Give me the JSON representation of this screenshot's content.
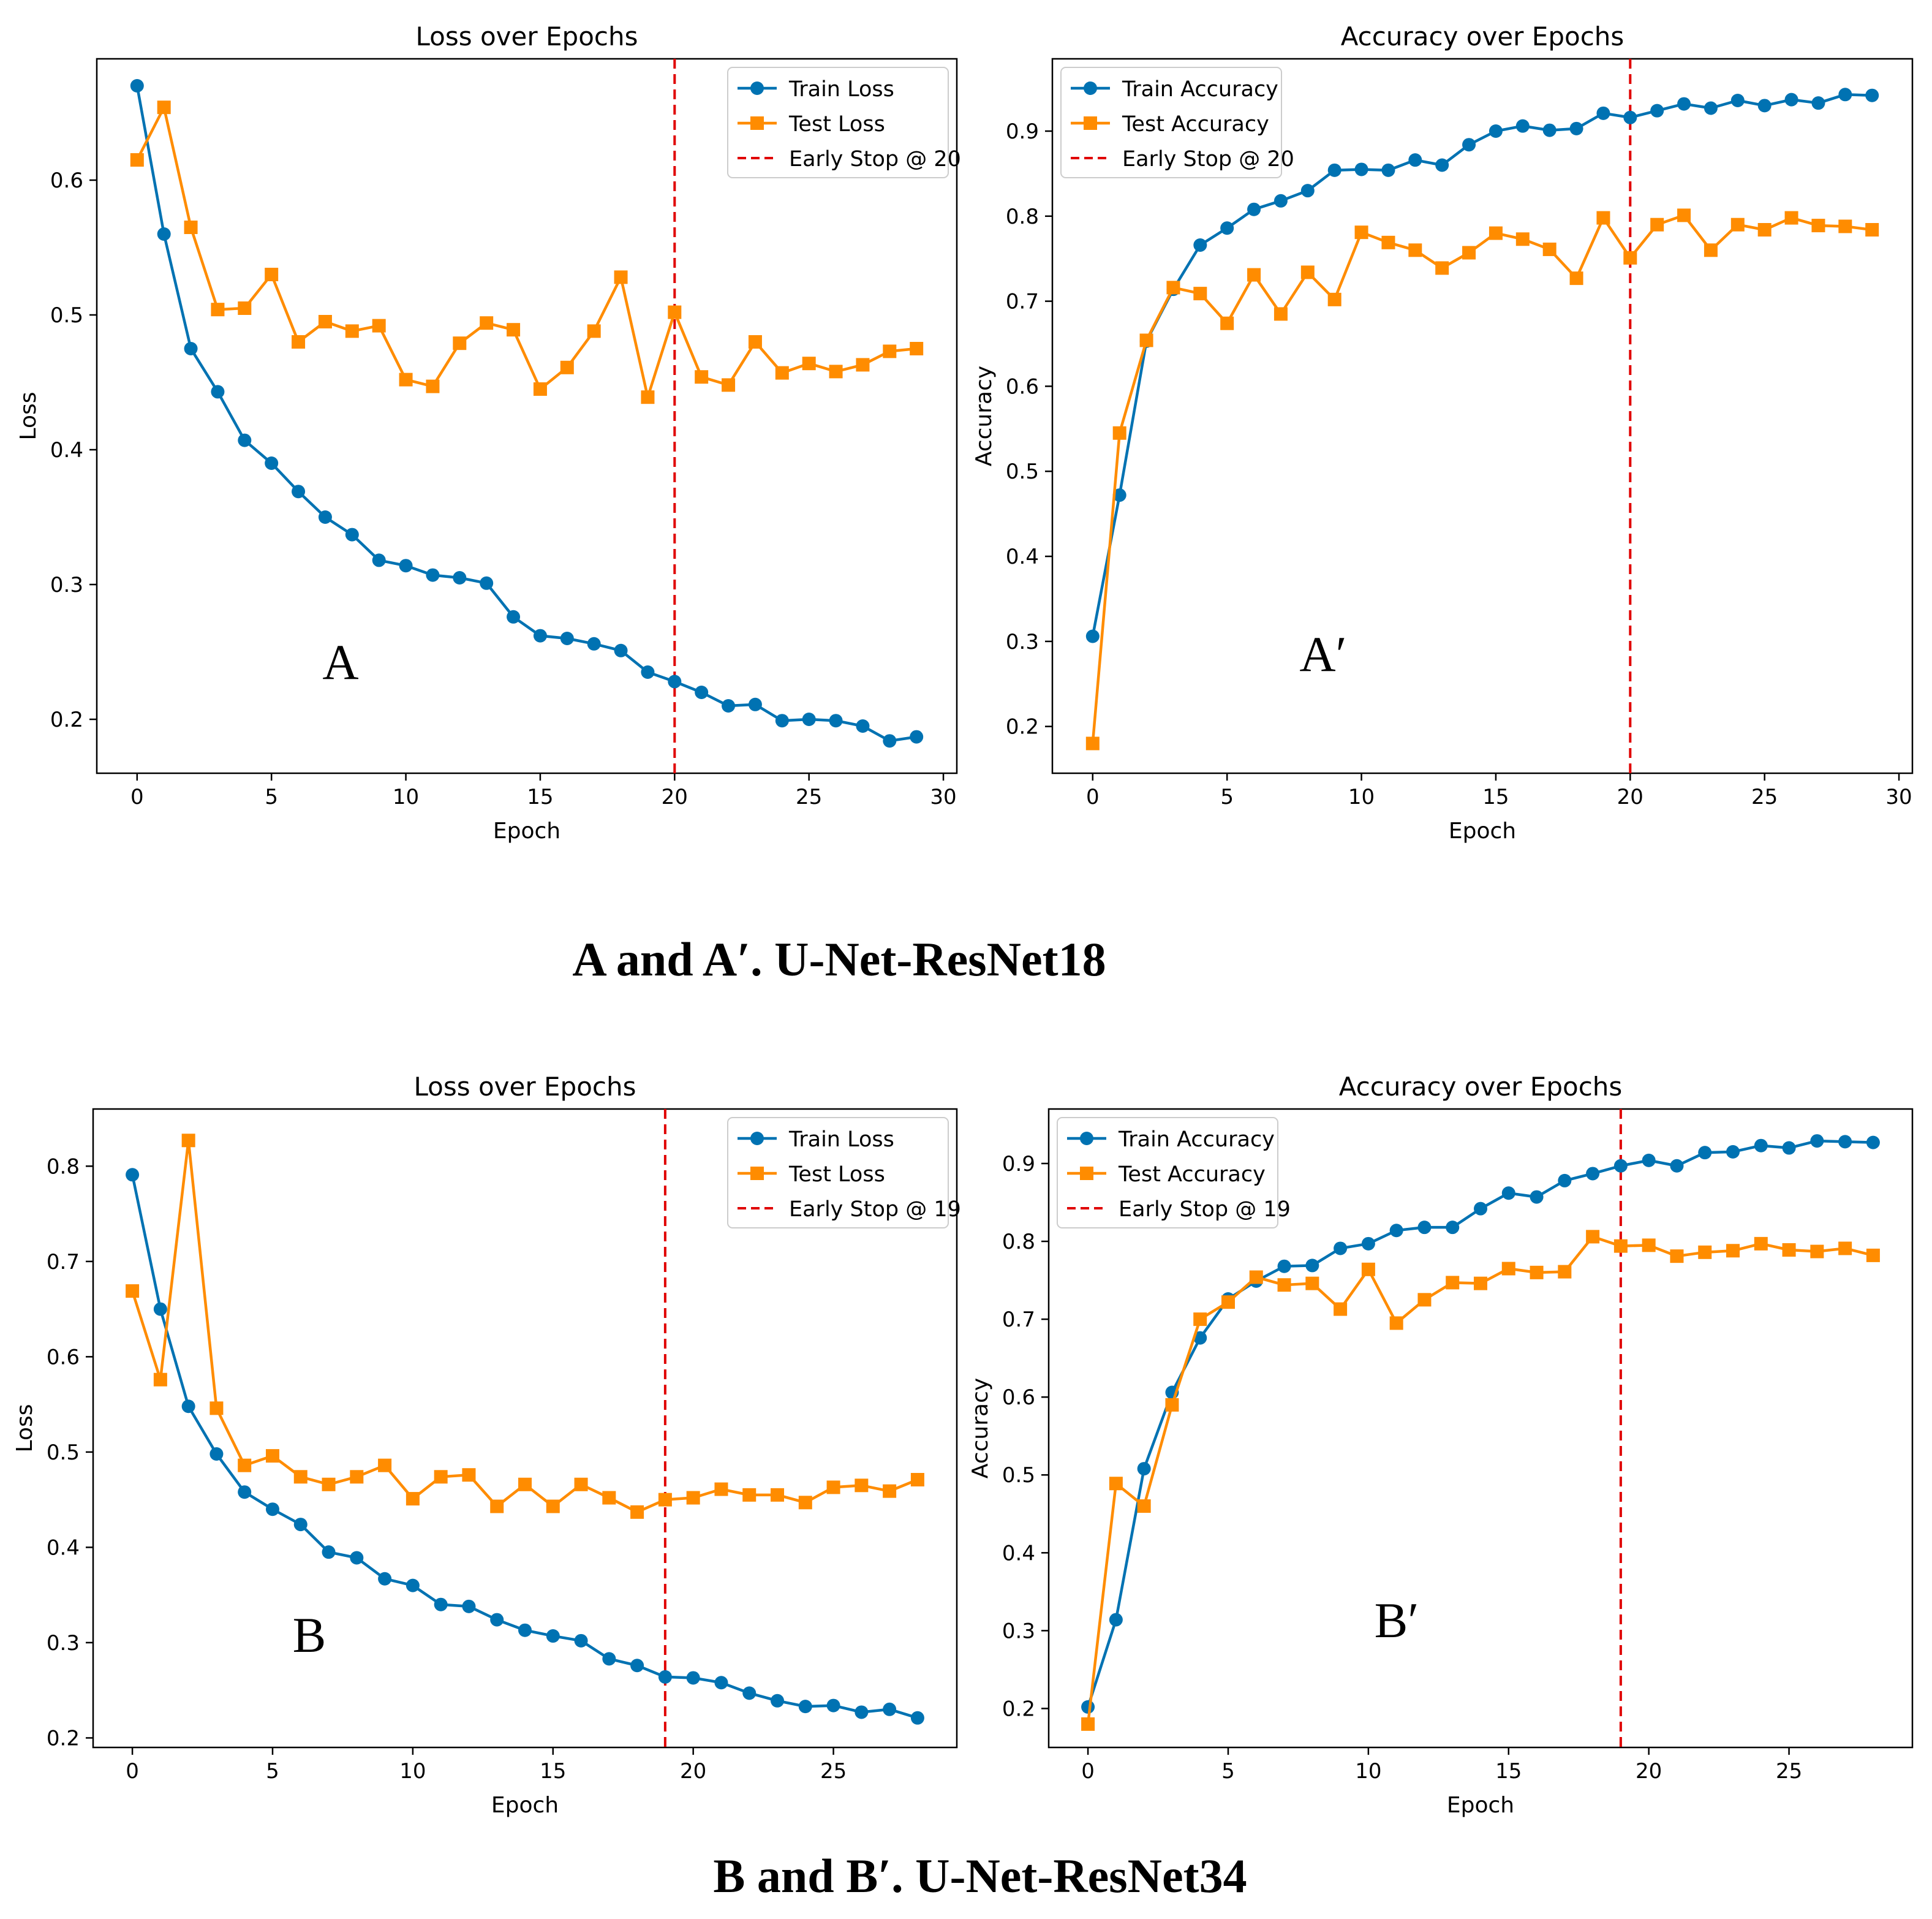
{
  "colors": {
    "train": "#0072b2",
    "test": "#ff8c00",
    "early_stop": "#e00000",
    "axis": "#000000",
    "background": "#ffffff"
  },
  "captions": {
    "top": "A and A′. U-Net-ResNet18",
    "bottom": "B and B′. U-Net-ResNet34"
  },
  "chart_data": [
    {
      "id": "A",
      "type": "line",
      "panel_label": "A",
      "title": "Loss over Epochs",
      "xlabel": "Epoch",
      "ylabel": "Loss",
      "xlim": [
        -1.5,
        30.5
      ],
      "ylim": [
        0.16,
        0.69
      ],
      "xticks": [
        0,
        5,
        10,
        15,
        20,
        25,
        30
      ],
      "yticks": [
        0.2,
        0.3,
        0.4,
        0.5,
        0.6
      ],
      "legend_position": "top-right",
      "early_stop": {
        "epoch": 20,
        "label": "Early Stop @ 20"
      },
      "x": [
        0,
        1,
        2,
        3,
        4,
        5,
        6,
        7,
        8,
        9,
        10,
        11,
        12,
        13,
        14,
        15,
        16,
        17,
        18,
        19,
        20,
        21,
        22,
        23,
        24,
        25,
        26,
        27,
        28,
        29
      ],
      "series": [
        {
          "name": "Train Loss",
          "marker": "circle",
          "values": [
            0.67,
            0.56,
            0.475,
            0.443,
            0.407,
            0.39,
            0.369,
            0.35,
            0.337,
            0.318,
            0.314,
            0.307,
            0.305,
            0.301,
            0.276,
            0.262,
            0.26,
            0.256,
            0.251,
            0.235,
            0.228,
            0.22,
            0.21,
            0.211,
            0.199,
            0.2,
            0.199,
            0.195,
            0.184,
            0.187
          ]
        },
        {
          "name": "Test Loss",
          "marker": "square",
          "values": [
            0.615,
            0.654,
            0.565,
            0.504,
            0.505,
            0.53,
            0.48,
            0.495,
            0.488,
            0.492,
            0.452,
            0.447,
            0.479,
            0.494,
            0.489,
            0.445,
            0.461,
            0.488,
            0.528,
            0.439,
            0.502,
            0.454,
            0.448,
            0.48,
            0.457,
            0.464,
            0.458,
            0.463,
            0.473,
            0.475
          ]
        }
      ]
    },
    {
      "id": "A_prime",
      "type": "line",
      "panel_label": "A′",
      "title": "Accuracy over Epochs",
      "xlabel": "Epoch",
      "ylabel": "Accuracy",
      "xlim": [
        -1.5,
        30.5
      ],
      "ylim": [
        0.145,
        0.985
      ],
      "xticks": [
        0,
        5,
        10,
        15,
        20,
        25,
        30
      ],
      "yticks": [
        0.2,
        0.3,
        0.4,
        0.5,
        0.6,
        0.7,
        0.8,
        0.9
      ],
      "legend_position": "top-left",
      "early_stop": {
        "epoch": 20,
        "label": "Early Stop @ 20"
      },
      "x": [
        0,
        1,
        2,
        3,
        4,
        5,
        6,
        7,
        8,
        9,
        10,
        11,
        12,
        13,
        14,
        15,
        16,
        17,
        18,
        19,
        20,
        21,
        22,
        23,
        24,
        25,
        26,
        27,
        28,
        29
      ],
      "series": [
        {
          "name": "Train Accuracy",
          "marker": "circle",
          "values": [
            0.306,
            0.472,
            0.653,
            0.714,
            0.766,
            0.786,
            0.808,
            0.818,
            0.83,
            0.854,
            0.855,
            0.854,
            0.866,
            0.86,
            0.884,
            0.9,
            0.906,
            0.901,
            0.903,
            0.921,
            0.916,
            0.924,
            0.932,
            0.927,
            0.936,
            0.93,
            0.937,
            0.933,
            0.943,
            0.942
          ]
        },
        {
          "name": "Test Accuracy",
          "marker": "square",
          "values": [
            0.18,
            0.545,
            0.654,
            0.716,
            0.709,
            0.674,
            0.731,
            0.685,
            0.734,
            0.702,
            0.781,
            0.769,
            0.76,
            0.739,
            0.757,
            0.78,
            0.773,
            0.761,
            0.727,
            0.798,
            0.751,
            0.79,
            0.801,
            0.76,
            0.79,
            0.784,
            0.798,
            0.789,
            0.788,
            0.784
          ]
        }
      ]
    },
    {
      "id": "B",
      "type": "line",
      "panel_label": "B",
      "title": "Loss over Epochs",
      "xlabel": "Epoch",
      "ylabel": "Loss",
      "xlim": [
        -1.4,
        29.4
      ],
      "ylim": [
        0.19,
        0.86
      ],
      "xticks": [
        0,
        5,
        10,
        15,
        20,
        25
      ],
      "yticks": [
        0.2,
        0.3,
        0.4,
        0.5,
        0.6,
        0.7,
        0.8
      ],
      "legend_position": "top-right",
      "early_stop": {
        "epoch": 19,
        "label": "Early Stop @ 19"
      },
      "x": [
        0,
        1,
        2,
        3,
        4,
        5,
        6,
        7,
        8,
        9,
        10,
        11,
        12,
        13,
        14,
        15,
        16,
        17,
        18,
        19,
        20,
        21,
        22,
        23,
        24,
        25,
        26,
        27,
        28
      ],
      "series": [
        {
          "name": "Train Loss",
          "marker": "circle",
          "values": [
            0.791,
            0.65,
            0.548,
            0.498,
            0.458,
            0.44,
            0.424,
            0.395,
            0.389,
            0.367,
            0.36,
            0.34,
            0.338,
            0.324,
            0.313,
            0.307,
            0.302,
            0.283,
            0.276,
            0.264,
            0.263,
            0.258,
            0.247,
            0.239,
            0.233,
            0.234,
            0.227,
            0.23,
            0.221
          ]
        },
        {
          "name": "Test Loss",
          "marker": "square",
          "values": [
            0.669,
            0.576,
            0.827,
            0.546,
            0.486,
            0.496,
            0.474,
            0.466,
            0.474,
            0.486,
            0.451,
            0.474,
            0.476,
            0.443,
            0.466,
            0.443,
            0.466,
            0.452,
            0.437,
            0.45,
            0.452,
            0.461,
            0.455,
            0.455,
            0.447,
            0.463,
            0.465,
            0.459,
            0.471
          ]
        }
      ]
    },
    {
      "id": "B_prime",
      "type": "line",
      "panel_label": "B′",
      "title": "Accuracy over Epochs",
      "xlabel": "Epoch",
      "ylabel": "Accuracy",
      "xlim": [
        -1.4,
        29.4
      ],
      "ylim": [
        0.15,
        0.97
      ],
      "xticks": [
        0,
        5,
        10,
        15,
        20,
        25
      ],
      "yticks": [
        0.2,
        0.3,
        0.4,
        0.5,
        0.6,
        0.7,
        0.8,
        0.9
      ],
      "legend_position": "top-left",
      "early_stop": {
        "epoch": 19,
        "label": "Early Stop @ 19"
      },
      "x": [
        0,
        1,
        2,
        3,
        4,
        5,
        6,
        7,
        8,
        9,
        10,
        11,
        12,
        13,
        14,
        15,
        16,
        17,
        18,
        19,
        20,
        21,
        22,
        23,
        24,
        25,
        26,
        27,
        28
      ],
      "series": [
        {
          "name": "Train Accuracy",
          "marker": "circle",
          "values": [
            0.202,
            0.314,
            0.508,
            0.606,
            0.676,
            0.726,
            0.749,
            0.768,
            0.769,
            0.791,
            0.797,
            0.814,
            0.818,
            0.818,
            0.842,
            0.862,
            0.857,
            0.878,
            0.887,
            0.897,
            0.904,
            0.897,
            0.914,
            0.915,
            0.923,
            0.92,
            0.929,
            0.928,
            0.927
          ]
        },
        {
          "name": "Test Accuracy",
          "marker": "square",
          "values": [
            0.18,
            0.489,
            0.46,
            0.59,
            0.7,
            0.722,
            0.754,
            0.744,
            0.746,
            0.713,
            0.764,
            0.695,
            0.725,
            0.747,
            0.746,
            0.765,
            0.76,
            0.761,
            0.806,
            0.794,
            0.795,
            0.781,
            0.786,
            0.788,
            0.797,
            0.789,
            0.787,
            0.791,
            0.782
          ]
        }
      ]
    }
  ]
}
